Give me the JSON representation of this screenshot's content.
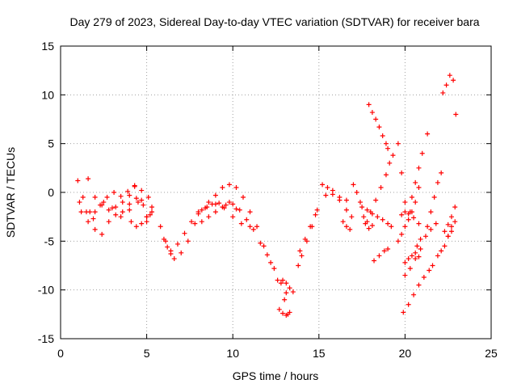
{
  "chart_data": {
    "type": "scatter",
    "title": "Day 279 of 2023, Sidereal Day-to-day VTEC variation (SDTVAR) for receiver bara",
    "xlabel": "GPS time / hours",
    "ylabel": "SDTVAR / TECUs",
    "xlim": [
      0,
      25
    ],
    "ylim": [
      -15,
      15
    ],
    "xticks": [
      0,
      5,
      10,
      15,
      20,
      25
    ],
    "yticks": [
      -15,
      -10,
      -5,
      0,
      5,
      10,
      15
    ],
    "grid": true,
    "marker": "+",
    "marker_color": "#ff0000",
    "series": [
      {
        "name": "SDTVAR",
        "segments": [
          {
            "x": [
              1.0,
              1.3,
              1.7,
              2.0,
              2.4,
              2.8,
              3.2,
              3.6,
              4.0,
              4.3,
              4.7,
              5.1,
              5.3
            ],
            "y": [
              1.2,
              -0.5,
              -2.0,
              -3.8,
              -4.3,
              -3.0,
              -1.5,
              -1.0,
              -0.3,
              0.7,
              0.2,
              -0.5,
              -1.5
            ]
          },
          {
            "x": [
              1.6,
              2.0,
              2.4,
              2.8,
              3.2,
              3.6,
              4.0,
              4.4,
              4.8,
              5.2
            ],
            "y": [
              1.4,
              -0.5,
              -1.3,
              -1.8,
              -2.3,
              -2.0,
              -1.2,
              -0.6,
              -1.3,
              -2.3
            ]
          },
          {
            "x": [
              1.1,
              1.5,
              1.9,
              2.3,
              2.7,
              3.1,
              3.5,
              3.9,
              4.3,
              4.7,
              5.0
            ],
            "y": [
              -1.0,
              -2.0,
              -2.7,
              -1.3,
              -0.5,
              0.0,
              -0.4,
              0.1,
              0.6,
              -0.8,
              -3.0
            ]
          },
          {
            "x": [
              1.2,
              1.6,
              2.0,
              2.5,
              3.0,
              3.5,
              4.0,
              4.5,
              5.0
            ],
            "y": [
              -2.0,
              -3.0,
              -2.0,
              -1.0,
              -1.6,
              -2.5,
              -1.8,
              -1.0,
              -2.5
            ]
          },
          {
            "x": [
              4.1,
              4.4,
              4.7,
              5.0,
              5.3
            ],
            "y": [
              -3.0,
              -3.5,
              -3.2,
              -2.5,
              -2.0
            ]
          },
          {
            "x": [
              5.8,
              6.0,
              6.2,
              6.4,
              6.6,
              7.0,
              7.4,
              7.8,
              8.2,
              8.6,
              9.0,
              9.4,
              9.8,
              10.2,
              10.6,
              11.0,
              11.4,
              11.8,
              12.2,
              12.6,
              13.0,
              13.2
            ],
            "y": [
              -3.5,
              -4.8,
              -5.6,
              -6.3,
              -6.8,
              -6.2,
              -5.0,
              -3.2,
              -1.8,
              -1.0,
              -0.3,
              0.5,
              0.8,
              0.5,
              -0.5,
              -2.0,
              -3.5,
              -5.5,
              -7.2,
              -9.0,
              -11.0,
              -12.5
            ]
          },
          {
            "x": [
              6.1,
              6.4,
              6.8,
              7.2,
              7.6,
              8.0,
              8.4,
              8.8,
              9.2,
              9.6,
              10.0,
              10.4,
              10.8,
              11.2,
              11.6,
              12.0,
              12.4,
              12.8,
              13.1
            ],
            "y": [
              -5.0,
              -6.0,
              -5.3,
              -4.2,
              -3.0,
              -2.2,
              -1.6,
              -1.2,
              -1.1,
              -1.3,
              -1.2,
              -1.8,
              -2.8,
              -3.8,
              -5.2,
              -6.4,
              -7.8,
              -9.3,
              -10.3
            ]
          },
          {
            "x": [
              8.0,
              8.5,
              9.0,
              9.5,
              10.0,
              10.5,
              11.0
            ],
            "y": [
              -2.0,
              -1.5,
              -1.2,
              -1.6,
              -2.5,
              -3.2,
              -3.5
            ]
          },
          {
            "x": [
              8.2,
              8.6,
              9.0,
              9.4,
              9.8,
              10.2
            ],
            "y": [
              -3.0,
              -2.5,
              -2.0,
              -1.5,
              -1.0,
              -1.7
            ]
          },
          {
            "x": [
              12.9,
              13.1,
              13.3,
              13.5
            ],
            "y": [
              -9.0,
              -9.3,
              -9.8,
              -10.2
            ]
          },
          {
            "x": [
              12.7,
              12.9,
              13.1,
              13.3
            ],
            "y": [
              -12.0,
              -12.4,
              -12.6,
              -12.3
            ]
          },
          {
            "x": [
              13.8,
              14.0,
              14.3,
              14.6,
              14.9
            ],
            "y": [
              -7.5,
              -6.5,
              -5.0,
              -3.5,
              -1.8
            ]
          },
          {
            "x": [
              13.9,
              14.2,
              14.5,
              14.8
            ],
            "y": [
              -6.0,
              -4.8,
              -3.5,
              -2.3
            ]
          },
          {
            "x": [
              15.2,
              15.5,
              15.8,
              16.2,
              16.6,
              16.9
            ],
            "y": [
              0.8,
              0.5,
              -0.2,
              -0.8,
              -1.8,
              -2.5
            ]
          },
          {
            "x": [
              15.4,
              15.8,
              16.2,
              16.6
            ],
            "y": [
              -0.3,
              0.2,
              -0.5,
              -0.8
            ]
          },
          {
            "x": [
              16.4,
              16.6,
              16.8
            ],
            "y": [
              -3.0,
              -3.5,
              -3.8
            ]
          },
          {
            "x": [
              17.0,
              17.2,
              17.4,
              17.6,
              17.8,
              18.0,
              18.3,
              18.6,
              18.9,
              19.1,
              19.3
            ],
            "y": [
              0.8,
              0.0,
              -1.0,
              -2.5,
              -3.0,
              -2.0,
              -0.8,
              0.5,
              1.8,
              3.0,
              3.8
            ]
          },
          {
            "x": [
              17.5,
              17.8,
              18.1,
              18.4,
              18.7,
              19.0,
              19.2
            ],
            "y": [
              -1.5,
              -1.8,
              -2.2,
              -2.5,
              -2.8,
              -3.2,
              -3.5
            ]
          },
          {
            "x": [
              17.7,
              17.9,
              18.1
            ],
            "y": [
              -3.2,
              -3.7,
              -3.4
            ]
          },
          {
            "x": [
              17.9,
              18.1,
              18.3,
              18.5,
              18.7,
              18.9,
              19.0
            ],
            "y": [
              9.0,
              8.2,
              7.5,
              6.7,
              5.8,
              5.0,
              4.5
            ]
          },
          {
            "x": [
              18.2,
              18.5,
              18.8,
              19.0
            ],
            "y": [
              -7.0,
              -6.5,
              -6.0,
              -5.8
            ]
          },
          {
            "x": [
              19.6,
              19.8,
              20.0,
              20.3
            ],
            "y": [
              5.0,
              2.0,
              -1.0,
              -2.0
            ]
          },
          {
            "x": [
              19.6,
              19.8,
              20.0,
              20.2,
              20.4,
              20.6,
              20.8
            ],
            "y": [
              -5.0,
              -4.3,
              -3.5,
              -2.8,
              -2.0,
              -1.0,
              0.5
            ]
          },
          {
            "x": [
              19.8,
              20.0,
              20.2,
              20.5,
              20.8
            ],
            "y": [
              -2.3,
              -2.0,
              -2.2,
              -2.6,
              -3.2
            ]
          },
          {
            "x": [
              20.0,
              20.2,
              20.4,
              20.6,
              20.8
            ],
            "y": [
              -7.2,
              -6.8,
              -6.5,
              -6.2,
              -6.6
            ]
          },
          {
            "x": [
              19.9,
              20.2,
              20.5,
              20.8,
              21.1,
              21.4,
              21.6
            ],
            "y": [
              -12.3,
              -11.5,
              -10.5,
              -9.5,
              -8.7,
              -8.0,
              -7.5
            ]
          },
          {
            "x": [
              20.0,
              20.3,
              20.6,
              20.9,
              21.2,
              21.5,
              21.8
            ],
            "y": [
              -8.5,
              -7.8,
              -6.8,
              -5.8,
              -4.5,
              -3.8,
              -3.2
            ]
          },
          {
            "x": [
              20.4,
              20.6,
              20.8,
              21.0,
              21.3
            ],
            "y": [
              -0.5,
              1.0,
              2.5,
              4.0,
              6.0
            ]
          },
          {
            "x": [
              21.3,
              21.5,
              21.7,
              21.9,
              22.1
            ],
            "y": [
              -3.5,
              -2.0,
              -0.5,
              1.0,
              2.0
            ]
          },
          {
            "x": [
              20.7,
              20.9
            ],
            "y": [
              -5.5,
              -4.8
            ]
          },
          {
            "x": [
              21.9,
              22.1,
              22.3,
              22.5,
              22.7
            ],
            "y": [
              -6.5,
              -6.0,
              -5.5,
              -4.5,
              -3.5
            ]
          },
          {
            "x": [
              22.3,
              22.5,
              22.7,
              22.9
            ],
            "y": [
              -4.0,
              -3.3,
              -2.5,
              -1.5
            ]
          },
          {
            "x": [
              22.2,
              22.4,
              22.6,
              22.8,
              22.95
            ],
            "y": [
              10.2,
              11.0,
              12.0,
              11.5,
              8.0
            ]
          },
          {
            "x": [
              22.5,
              22.7,
              22.9
            ],
            "y": [
              -4.5,
              -4.0,
              -3.0
            ]
          }
        ]
      }
    ]
  }
}
